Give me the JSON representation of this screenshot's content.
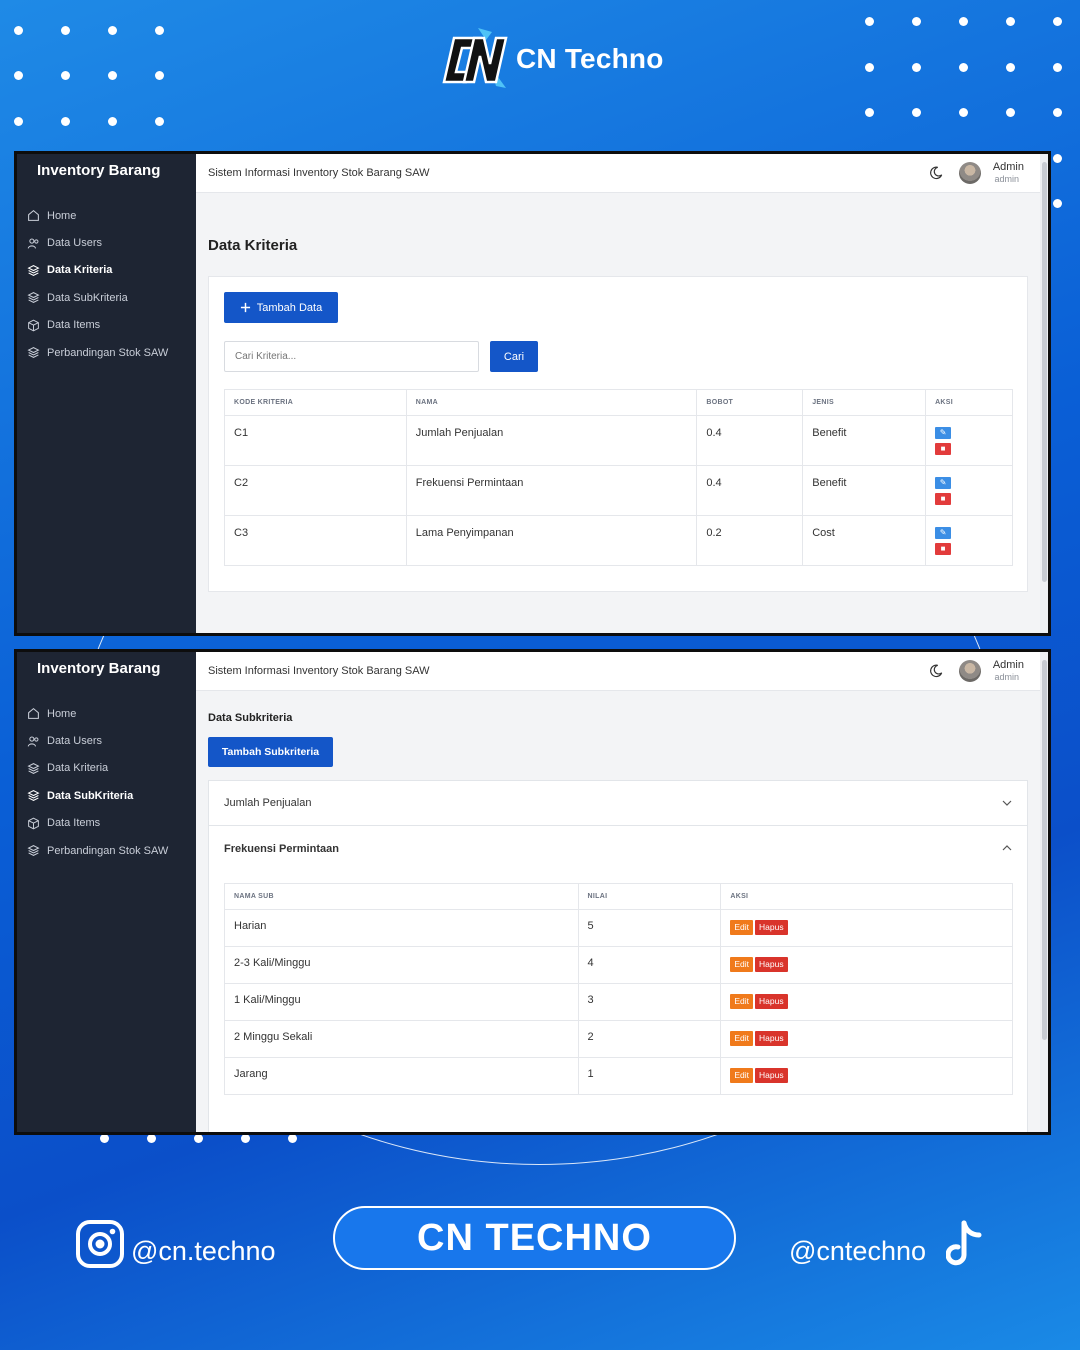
{
  "brand": {
    "name": "CN Techno",
    "logo_text": "CN"
  },
  "icons": {
    "logo": "cn-logo-icon",
    "home": "home-icon",
    "users": "users-icon",
    "layers": "layers-icon",
    "box": "box-icon",
    "moon": "moon-icon",
    "plus": "plus-icon",
    "edit": "edit-icon",
    "trash": "trash-icon",
    "chevron_down": "chevron-down-icon",
    "chevron_up": "chevron-up-icon",
    "instagram": "instagram-icon",
    "tiktok": "tiktok-icon"
  },
  "colors": {
    "background": "#0b5fd6",
    "sidebar": "#1e2533",
    "primary": "#1456c8",
    "edit": "#f07a1b",
    "delete": "#d9342b"
  },
  "app": {
    "sidebar_title": "Inventory Barang",
    "topbar_title": "Sistem Informasi Inventory Stok Barang SAW",
    "user_name": "Admin",
    "user_role": "admin",
    "menu": [
      {
        "label": "Home",
        "icon": "home-icon"
      },
      {
        "label": "Data Users",
        "icon": "users-icon"
      },
      {
        "label": "Data Kriteria",
        "icon": "layers-icon"
      },
      {
        "label": "Data SubKriteria",
        "icon": "layers-icon"
      },
      {
        "label": "Data Items",
        "icon": "box-icon"
      },
      {
        "label": "Perbandingan Stok SAW",
        "icon": "layers-icon"
      }
    ]
  },
  "kriteria": {
    "page_title": "Data Kriteria",
    "add_button": "Tambah Data",
    "search_placeholder": "Cari Kriteria...",
    "search_button": "Cari",
    "columns": [
      "KODE KRITERIA",
      "NAMA",
      "BOBOT",
      "JENIS",
      "AKSI"
    ],
    "rows": [
      {
        "kode": "C1",
        "nama": "Jumlah Penjualan",
        "bobot": "0.4",
        "jenis": "Benefit"
      },
      {
        "kode": "C2",
        "nama": "Frekuensi Permintaan",
        "bobot": "0.4",
        "jenis": "Benefit"
      },
      {
        "kode": "C3",
        "nama": "Lama Penyimpanan",
        "bobot": "0.2",
        "jenis": "Cost"
      }
    ]
  },
  "subkriteria": {
    "page_title": "Data Subkriteria",
    "add_button": "Tambah Subkriteria",
    "accordion": [
      {
        "label": "Jumlah Penjualan",
        "expanded": false
      },
      {
        "label": "Frekuensi Permintaan",
        "expanded": true
      }
    ],
    "columns": [
      "NAMA SUB",
      "NILAI",
      "AKSI"
    ],
    "edit_label": "Edit",
    "delete_label": "Hapus",
    "rows": [
      {
        "nama": "Harian",
        "nilai": "5"
      },
      {
        "nama": "2-3 Kali/Minggu",
        "nilai": "4"
      },
      {
        "nama": "1 Kali/Minggu",
        "nilai": "3"
      },
      {
        "nama": "2 Minggu Sekali",
        "nilai": "2"
      },
      {
        "nama": "Jarang",
        "nilai": "1"
      }
    ]
  },
  "footer": {
    "instagram": "@cn.techno",
    "pill": "CN TECHNO",
    "tiktok": "@cntechno"
  }
}
